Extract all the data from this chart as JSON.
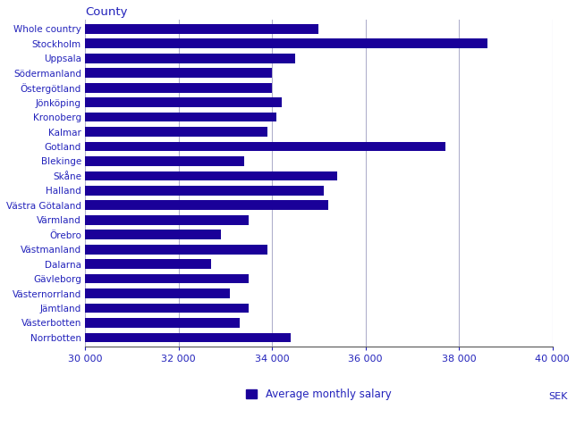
{
  "title": "County",
  "sek_label": "SEK",
  "legend_label": "Average monthly salary",
  "bar_color": "#1a0099",
  "background_color": "#ffffff",
  "grid_color": "#b0b0cc",
  "text_color": "#2222bb",
  "xlim": [
    30000,
    40000
  ],
  "xticks": [
    30000,
    32000,
    34000,
    36000,
    38000,
    40000
  ],
  "xtick_labels": [
    "30 000",
    "32 000",
    "34 000",
    "36 000",
    "38 000",
    "40 000"
  ],
  "categories": [
    "Whole country",
    "Stockholm",
    "Uppsala",
    "Södermanland",
    "Östergötland",
    "Jönköping",
    "Kronoberg",
    "Kalmar",
    "Gotland",
    "Blekinge",
    "Skåne",
    "Halland",
    "Västra Götaland",
    "Värmland",
    "Örebro",
    "Västmanland",
    "Dalarna",
    "Gävleborg",
    "Västernorrland",
    "Jämtland",
    "Västerbotten",
    "Norrbotten"
  ],
  "values": [
    35000,
    38600,
    34500,
    34000,
    34000,
    34200,
    34100,
    33900,
    37700,
    33400,
    35400,
    35100,
    35200,
    33500,
    32900,
    33900,
    32700,
    33500,
    33100,
    33500,
    33300,
    34400
  ]
}
